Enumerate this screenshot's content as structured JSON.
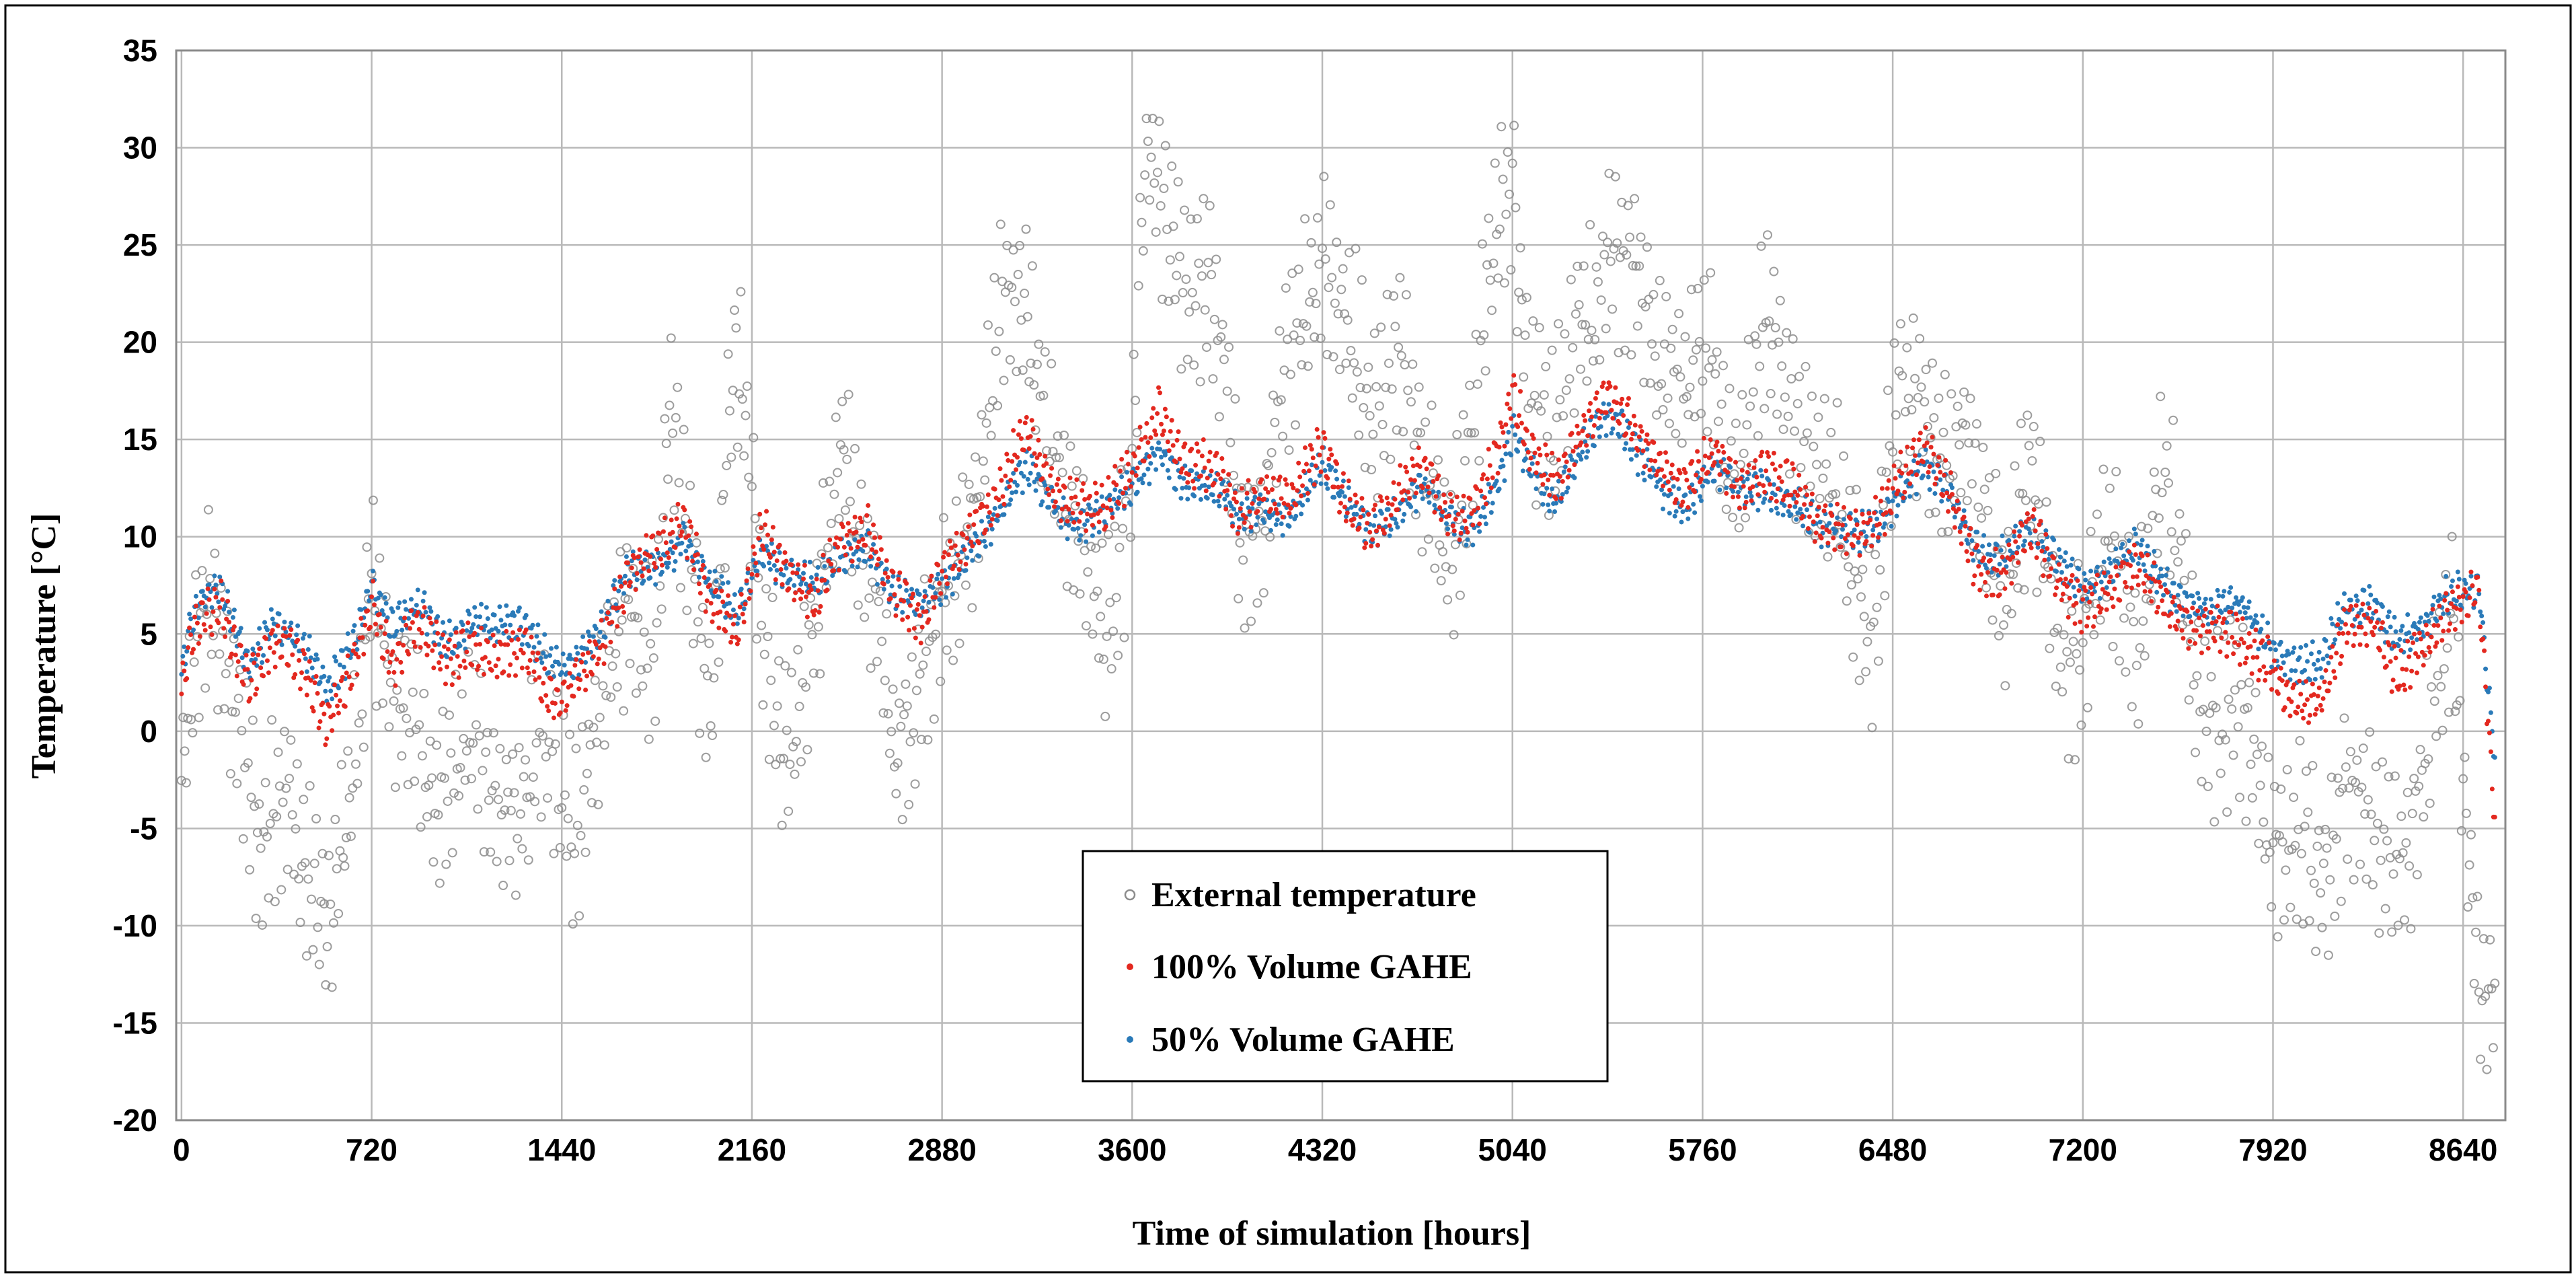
{
  "chart_data": {
    "type": "scatter",
    "title": "",
    "xlabel": "Time of simulation [hours]",
    "ylabel": "Temperature [°C]",
    "xlim": [
      -20,
      8800
    ],
    "ylim": [
      -20,
      35
    ],
    "x_ticks": [
      0,
      720,
      1440,
      2160,
      2880,
      3600,
      4320,
      5040,
      5760,
      6480,
      7200,
      7920,
      8640
    ],
    "y_ticks": [
      35,
      30,
      25,
      20,
      15,
      10,
      5,
      0,
      -5,
      -10,
      -15,
      -20
    ],
    "grid": true,
    "legend_position": "bottom-center",
    "colors": {
      "external": "#8c8c8c",
      "gahe100": "#e3281f",
      "gahe50": "#2a7ab8",
      "grid": "#b9b9b9"
    },
    "series": [
      {
        "name": "External temperature",
        "key": "external",
        "marker": "circle",
        "x": [
          0,
          100,
          200,
          300,
          400,
          500,
          560,
          650,
          720,
          800,
          900,
          1000,
          1100,
          1200,
          1300,
          1400,
          1500,
          1600,
          1700,
          1800,
          1850,
          1900,
          2000,
          2100,
          2200,
          2300,
          2400,
          2500,
          2600,
          2700,
          2800,
          2900,
          3000,
          3100,
          3200,
          3300,
          3400,
          3500,
          3600,
          3650,
          3700,
          3800,
          3900,
          4000,
          4100,
          4200,
          4320,
          4400,
          4500,
          4600,
          4700,
          4800,
          4900,
          5000,
          5040,
          5100,
          5200,
          5300,
          5400,
          5500,
          5600,
          5700,
          5800,
          5900,
          6000,
          6100,
          6200,
          6300,
          6400,
          6500,
          6600,
          6700,
          6800,
          6900,
          7000,
          7100,
          7200,
          7300,
          7400,
          7500,
          7600,
          7700,
          7800,
          7900,
          8000,
          8100,
          8200,
          8300,
          8400,
          8500,
          8600,
          8700
        ],
        "y": [
          -3,
          4,
          1,
          -8,
          0,
          -5,
          -11,
          -3,
          7,
          -2,
          -1,
          0,
          1,
          -2,
          -6,
          -4,
          -5,
          3,
          10,
          5,
          16,
          8,
          0,
          18,
          8,
          2,
          5,
          15,
          4,
          -2,
          5,
          8,
          14,
          20,
          18,
          14,
          10,
          8,
          15,
          29,
          25,
          22,
          20,
          12,
          14,
          20,
          25,
          18,
          14,
          22,
          15,
          12,
          16,
          24,
          26,
          17,
          14,
          25,
          26,
          22,
          18,
          15,
          19,
          16,
          22,
          18,
          10,
          8,
          6,
          18,
          20,
          14,
          10,
          6,
          12,
          8,
          7,
          9,
          4,
          10,
          5,
          3,
          2,
          -3,
          -8,
          -11,
          -2,
          -5,
          -4,
          0,
          3,
          -15
        ],
        "note": "Values are an approximate reading of the dense hourly point cloud."
      },
      {
        "name": "100% Volume GAHE",
        "key": "gahe100",
        "marker": "point",
        "x": [
          0,
          50,
          150,
          250,
          350,
          450,
          550,
          650,
          720,
          800,
          900,
          1000,
          1100,
          1200,
          1300,
          1400,
          1500,
          1600,
          1700,
          1800,
          1900,
          2000,
          2100,
          2200,
          2300,
          2400,
          2500,
          2600,
          2700,
          2800,
          2900,
          3000,
          3100,
          3200,
          3300,
          3400,
          3500,
          3600,
          3700,
          3800,
          3900,
          4000,
          4100,
          4200,
          4320,
          4400,
          4500,
          4600,
          4700,
          4800,
          4900,
          5000,
          5040,
          5100,
          5200,
          5300,
          5400,
          5500,
          5600,
          5700,
          5800,
          5900,
          6000,
          6100,
          6200,
          6300,
          6400,
          6500,
          6600,
          6700,
          6800,
          6900,
          7000,
          7100,
          7200,
          7300,
          7400,
          7500,
          7600,
          7700,
          7800,
          7900,
          8000,
          8100,
          8200,
          8300,
          8400,
          8500,
          8600,
          8700,
          8760
        ],
        "y": [
          2,
          5,
          6,
          3,
          5,
          3,
          0,
          4,
          7,
          3,
          5,
          4,
          5,
          3,
          4,
          2,
          3,
          4,
          8,
          10,
          11,
          6,
          5,
          11,
          8,
          6,
          10,
          11,
          7,
          5,
          9,
          11,
          12,
          15,
          13,
          12,
          11,
          13,
          17,
          14,
          13,
          11,
          13,
          12,
          14,
          12,
          11,
          12,
          13,
          11,
          12,
          15,
          17,
          14,
          13,
          16,
          17,
          15,
          14,
          13,
          14,
          12,
          14,
          13,
          10,
          10,
          11,
          13,
          14,
          12,
          9,
          8,
          10,
          8,
          7,
          7,
          8,
          7,
          6,
          5,
          4,
          4,
          2,
          1,
          5,
          6,
          3,
          4,
          6,
          8,
          -4
        ]
      },
      {
        "name": "50% Volume GAHE",
        "key": "gahe50",
        "marker": "point",
        "x": [
          0,
          50,
          150,
          250,
          350,
          450,
          550,
          650,
          720,
          800,
          900,
          1000,
          1100,
          1200,
          1300,
          1400,
          1500,
          1600,
          1700,
          1800,
          1900,
          2000,
          2100,
          2200,
          2300,
          2400,
          2500,
          2600,
          2700,
          2800,
          2900,
          3000,
          3100,
          3200,
          3300,
          3400,
          3500,
          3600,
          3700,
          3800,
          3900,
          4000,
          4100,
          4200,
          4320,
          4400,
          4500,
          4600,
          4700,
          4800,
          4900,
          5000,
          5040,
          5100,
          5200,
          5300,
          5400,
          5500,
          5600,
          5700,
          5800,
          5900,
          6000,
          6100,
          6200,
          6300,
          6400,
          6500,
          6600,
          6700,
          6800,
          6900,
          7000,
          7100,
          7200,
          7300,
          7400,
          7500,
          7600,
          7700,
          7800,
          7900,
          8000,
          8100,
          8200,
          8300,
          8400,
          8500,
          8600,
          8700,
          8760
        ],
        "y": [
          3,
          6,
          7,
          4,
          6,
          4,
          2,
          5,
          8,
          5,
          6,
          5,
          6,
          5,
          5,
          4,
          4,
          5,
          8,
          9,
          10,
          7,
          6,
          10,
          8,
          7,
          9,
          10,
          7,
          6,
          8,
          10,
          11,
          13,
          12,
          11,
          11,
          12,
          15,
          13,
          12,
          11,
          12,
          11,
          13,
          12,
          11,
          11,
          12,
          11,
          11,
          13,
          15,
          13,
          12,
          15,
          16,
          14,
          13,
          12,
          13,
          12,
          13,
          12,
          10,
          10,
          11,
          12,
          13,
          12,
          10,
          9,
          10,
          9,
          8,
          8,
          9,
          8,
          7,
          6,
          6,
          5,
          4,
          3,
          6,
          7,
          5,
          5,
          7,
          8,
          -1
        ]
      }
    ],
    "legend": [
      {
        "key": "external",
        "label": "External temperature"
      },
      {
        "key": "gahe100",
        "label": "100% Volume GAHE"
      },
      {
        "key": "gahe50",
        "label": "50% Volume GAHE"
      }
    ]
  }
}
